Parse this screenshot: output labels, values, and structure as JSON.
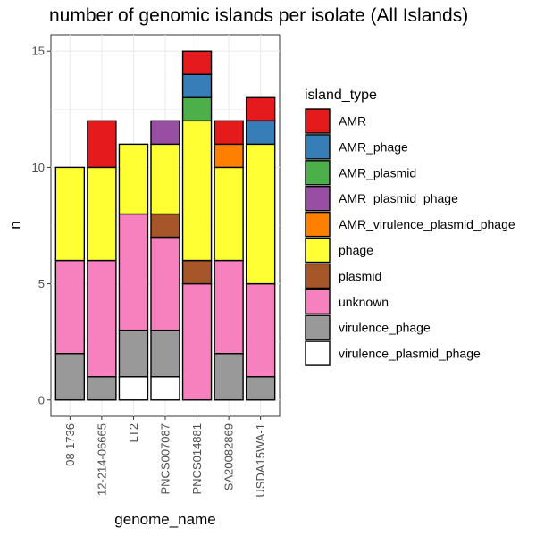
{
  "chart_data": {
    "type": "bar",
    "stacked": true,
    "title": "number of genomic islands per isolate (All Islands)",
    "xlabel": "genome_name",
    "ylabel": "n",
    "ylim": [
      -0.7,
      15.7
    ],
    "yticks": [
      0,
      5,
      10,
      15
    ],
    "grid": true,
    "legend_position": "right",
    "legend_title": "island_type",
    "categories": [
      "08-1736",
      "12-214-06665",
      "LT2",
      "PNCS007087",
      "PNCS014881",
      "SA20082869",
      "USDA15WA-1"
    ],
    "series": [
      {
        "name": "virulence_plasmid_phage",
        "color": "#FFFFFF",
        "values": [
          0,
          0,
          1,
          1,
          0,
          0,
          0
        ]
      },
      {
        "name": "virulence_phage",
        "color": "#999999",
        "values": [
          2,
          1,
          2,
          2,
          0,
          2,
          1
        ]
      },
      {
        "name": "unknown",
        "color": "#F781BF",
        "values": [
          4,
          5,
          5,
          4,
          5,
          4,
          4
        ]
      },
      {
        "name": "plasmid",
        "color": "#A65628",
        "values": [
          0,
          0,
          0,
          1,
          1,
          0,
          0
        ]
      },
      {
        "name": "phage",
        "color": "#FFFF33",
        "values": [
          4,
          4,
          3,
          3,
          6,
          4,
          6
        ]
      },
      {
        "name": "AMR_virulence_plasmid_phage",
        "color": "#FF7F00",
        "values": [
          0,
          0,
          0,
          0,
          0,
          1,
          0
        ]
      },
      {
        "name": "AMR_plasmid_phage",
        "color": "#984EA3",
        "values": [
          0,
          0,
          0,
          1,
          0,
          0,
          0
        ]
      },
      {
        "name": "AMR_plasmid",
        "color": "#4DAF4A",
        "values": [
          0,
          0,
          0,
          0,
          1,
          0,
          0
        ]
      },
      {
        "name": "AMR_phage",
        "color": "#377EB8",
        "values": [
          0,
          0,
          0,
          0,
          1,
          0,
          1
        ]
      },
      {
        "name": "AMR",
        "color": "#E41A1C",
        "values": [
          0,
          2,
          0,
          0,
          1,
          1,
          1
        ]
      }
    ],
    "legend_order": [
      "AMR",
      "AMR_phage",
      "AMR_plasmid",
      "AMR_plasmid_phage",
      "AMR_virulence_plasmid_phage",
      "phage",
      "plasmid",
      "unknown",
      "virulence_phage",
      "virulence_plasmid_phage"
    ]
  }
}
